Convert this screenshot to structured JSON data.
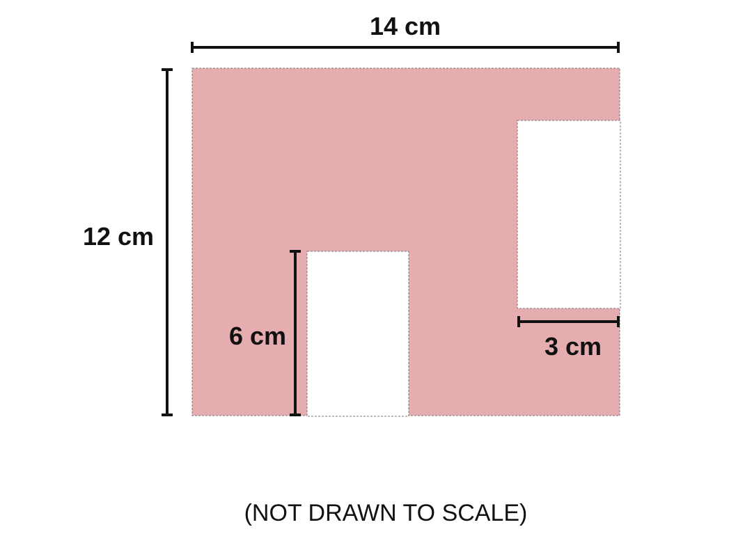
{
  "labels": {
    "top_width": "14 cm",
    "left_height": "12 cm",
    "inner_height": "6 cm",
    "inner_width": "3 cm"
  },
  "note": "(NOT DRAWN TO SCALE)",
  "colors": {
    "shape_fill": "#e5adb0",
    "cutout_fill": "#ffffff",
    "dimension_line": "#111111",
    "outline": "#777777"
  }
}
